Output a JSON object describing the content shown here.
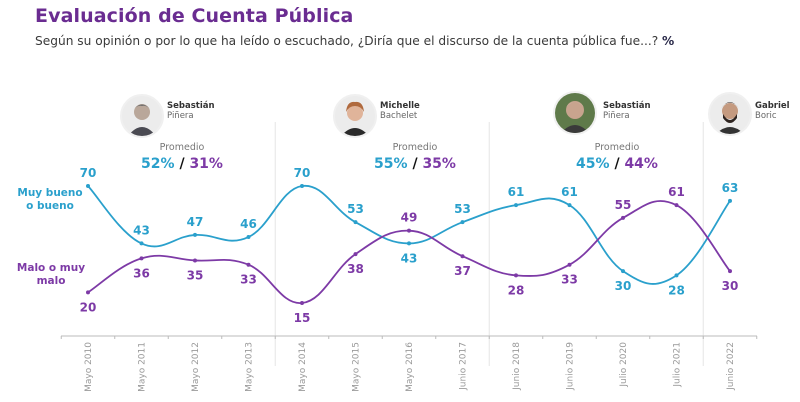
{
  "header": {
    "title": "Evaluación de Cuenta Pública",
    "subtitle": "Según su opinión o por lo que ha leído o escuchado, ¿Diría que el discurso de la cuenta pública fue...?",
    "unit": "%"
  },
  "colors": {
    "title": "#6a2c91",
    "good": "#2aa0cc",
    "bad": "#7d3aa6",
    "grid": "#e6e6e6",
    "axis": "#bbbbbb",
    "tick_text": "#9a9a9a"
  },
  "presidents": [
    {
      "first": "Sebastián",
      "last": "Piñera",
      "avatar_icon": "portrait-icon",
      "avg_label": "Promedio",
      "avg_good": "52%",
      "avg_bad": "31%"
    },
    {
      "first": "Michelle",
      "last": "Bachelet",
      "avatar_icon": "portrait-icon",
      "avg_label": "Promedio",
      "avg_good": "55%",
      "avg_bad": "35%"
    },
    {
      "first": "Sebastián",
      "last": "Piñera",
      "avatar_icon": "portrait-icon",
      "avg_label": "Promedio",
      "avg_good": "45%",
      "avg_bad": "44%"
    },
    {
      "first": "Gabriel",
      "last": "Boric",
      "avatar_icon": "portrait-icon"
    }
  ],
  "chart_data": {
    "type": "line",
    "title": "Evaluación de Cuenta Pública",
    "xlabel": "",
    "ylabel": "%",
    "x": [
      "Mayo 2010",
      "Mayo 2011",
      "Mayo 2012",
      "Mayo 2013",
      "Mayo 2014",
      "Mayo 2015",
      "Mayo 2016",
      "Junio 2017",
      "Junio 2018",
      "Junio 2019",
      "Julio 2020",
      "Julio 2021",
      "Junio 2022"
    ],
    "series": [
      {
        "name": "Muy bueno o bueno",
        "label_lines": [
          "Muy bueno",
          "o bueno"
        ],
        "color": "#2aa0cc",
        "values": [
          70,
          43,
          47,
          46,
          70,
          53,
          43,
          53,
          61,
          61,
          30,
          28,
          63
        ]
      },
      {
        "name": "Malo o muy malo",
        "label_lines": [
          "Malo o muy",
          "malo"
        ],
        "color": "#7d3aa6",
        "values": [
          20,
          36,
          35,
          33,
          15,
          38,
          49,
          37,
          28,
          33,
          55,
          61,
          30
        ]
      }
    ],
    "ylim": [
      15,
      70
    ],
    "grid": false,
    "legend": "left",
    "period_separators_after": [
      "Mayo 2013",
      "Junio 2017",
      "Julio 2021"
    ]
  }
}
